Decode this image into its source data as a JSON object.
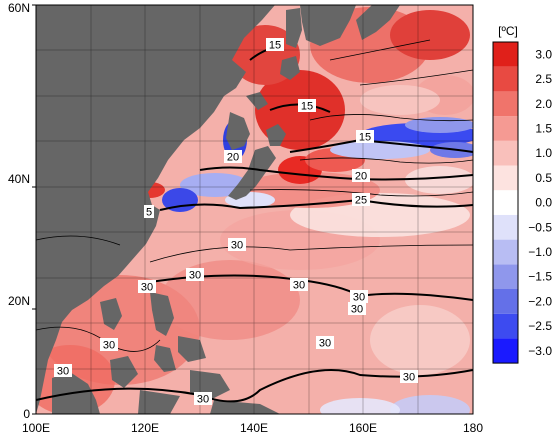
{
  "map": {
    "lon_labels": [
      "100E",
      "120E",
      "140E",
      "160E",
      "180"
    ],
    "lat_labels": [
      "60N",
      "40N",
      "20N",
      "0"
    ],
    "contour_labels": [
      "15",
      "15",
      "15",
      "20",
      "20",
      "25",
      "30",
      "30",
      "30",
      "30",
      "30",
      "30",
      "30",
      "30",
      "30",
      "5"
    ],
    "colors": {
      "land": "#666666",
      "ocean_base": "#f2b3b0",
      "warm_strong": "#e02020",
      "cold_strong": "#2030e0",
      "contour": "#000000"
    }
  },
  "colorbar": {
    "unit": "[ºC]",
    "tick_labels": [
      "3.0",
      "2.5",
      "2.0",
      "1.5",
      "1.0",
      "0.5",
      "0.0",
      "−0.5",
      "−1.0",
      "−1.5",
      "−2.0",
      "−2.5",
      "−3.0"
    ],
    "colors": [
      "#1a1aff",
      "#3d4bf0",
      "#6470e8",
      "#8f97ec",
      "#b8bdf3",
      "#dfe1fa",
      "#ffffff",
      "#fde3e0",
      "#f9c0bb",
      "#f59a93",
      "#f0746b",
      "#e84a42",
      "#e0201a"
    ]
  }
}
